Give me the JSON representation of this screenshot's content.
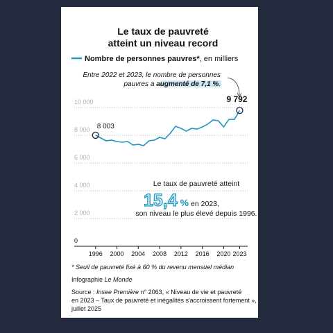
{
  "chart_data": {
    "type": "line",
    "title": [
      "Le taux de pauvreté",
      "atteint un niveau record"
    ],
    "legend_unit": ", en milliers",
    "annotation": {
      "lines": [
        "Entre 2022 et 2023, le nombre de personnes",
        "pauvres a "
      ],
      "highlight": "augmenté de 7,1 %",
      "end": "."
    },
    "callout": {
      "line1": "Le taux de pauvreté atteint",
      "big": "15,4",
      "big_unit": "%",
      "line2": " en 2023,",
      "line3": "son niveau le plus élevé depuis 1996."
    },
    "x": [
      1996,
      1997,
      1998,
      1999,
      2000,
      2001,
      2002,
      2003,
      2004,
      2005,
      2006,
      2007,
      2008,
      2009,
      2010,
      2011,
      2012,
      2013,
      2014,
      2015,
      2016,
      2017,
      2018,
      2019,
      2020,
      2021,
      2022,
      2023
    ],
    "series": [
      {
        "name": "Nombre de personnes pauvres*",
        "color": "#1a98c0",
        "values": [
          8003,
          7800,
          7600,
          7650,
          7550,
          7500,
          7550,
          7300,
          7350,
          7250,
          7600,
          7650,
          7850,
          7750,
          8150,
          8650,
          8500,
          8300,
          8500,
          8450,
          8600,
          8800,
          9100,
          9050,
          8600,
          9150,
          9140,
          9792
        ],
        "value_labels": [
          "8 003",
          null,
          null,
          null,
          null,
          null,
          null,
          null,
          null,
          null,
          null,
          null,
          null,
          null,
          null,
          null,
          null,
          null,
          null,
          null,
          null,
          null,
          null,
          null,
          null,
          null,
          null,
          "9 792"
        ]
      }
    ],
    "xlim": [
      1992,
      2024.5
    ],
    "xticks": [
      1996,
      2000,
      2004,
      2008,
      2012,
      2016,
      2020,
      2023
    ],
    "ylim": [
      0,
      10000
    ],
    "yticks": [
      0,
      {
        "value": 2000,
        "label": "2 000"
      },
      {
        "value": 4000,
        "label": "4 000"
      },
      {
        "value": 6000,
        "label": "6 000"
      },
      {
        "value": 8000,
        "label": "8 000"
      },
      {
        "value": 10000,
        "label": "10 000"
      }
    ],
    "grid": true,
    "notes": {
      "footnote": "* Seuil de pauvreté fixé à 60 % du revenu mensuel médian",
      "credit": "Infographie ",
      "credit_name": "Le Monde",
      "source_a": "Source : ",
      "source_pub": "Insee Première",
      "source_b": " n° 2063, « Niveau de vie et pauvreté",
      "source_c": "en 2023 – Taux de pauvreté et inégalités s'accroissent fortement »,",
      "source_d": "juillet 2025"
    }
  }
}
